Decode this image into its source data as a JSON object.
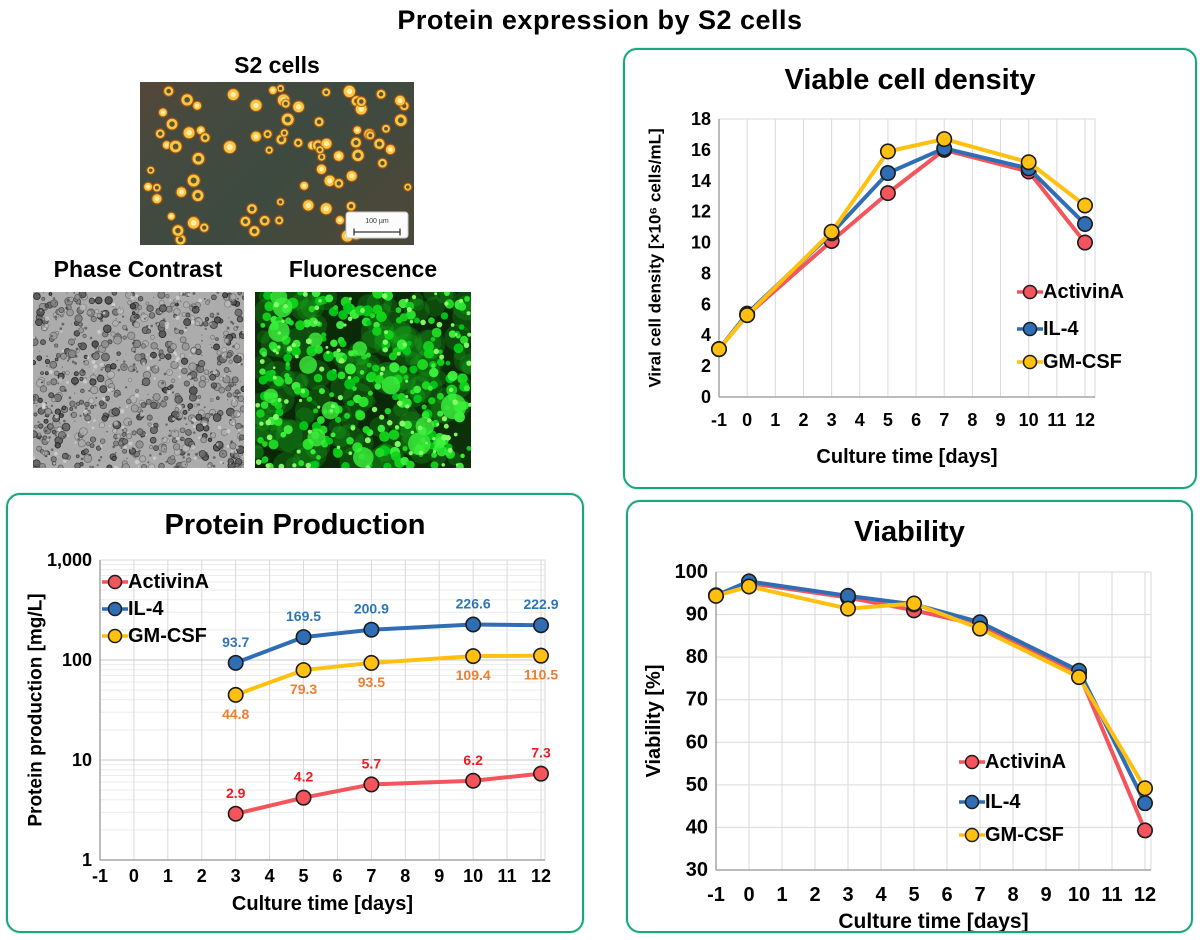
{
  "page_title": "Protein expression by S2 cells",
  "microscopy": {
    "s2_label": "S2 cells",
    "phase_label": "Phase Contrast",
    "fluor_label": "Fluorescence",
    "scale_bar_text": "100 µm"
  },
  "colors": {
    "panel_border": "#18A67D",
    "activina": "#F4545C",
    "il4": "#2F6DB4",
    "gmcsf": "#FFC010",
    "activina_label": "#ED1C24",
    "il4_label": "#2E75B5",
    "gmcsf_label": "#ED7D31",
    "marker_outline": "#1C1C1C",
    "grid": "#D9D9D9",
    "axis": "#A6A6A6"
  },
  "chart_data": [
    {
      "id": "viable-cell-density",
      "type": "line",
      "title": "Viable cell density",
      "xlabel": "Culture time [days]",
      "ylabel": "Viral cell density [×10⁶ cells/mL]",
      "x": [
        -1,
        0,
        3,
        5,
        7,
        10,
        12
      ],
      "xticks": [
        -1,
        0,
        1,
        2,
        3,
        4,
        5,
        6,
        7,
        8,
        9,
        10,
        11,
        12
      ],
      "ylim": [
        0,
        18
      ],
      "yticks": [
        0,
        2,
        4,
        6,
        8,
        10,
        12,
        14,
        16,
        18
      ],
      "yscale": "linear",
      "grid": {
        "vertical": true,
        "horizontal": false,
        "log_minor": false
      },
      "legend_position": "middle-right",
      "series": [
        {
          "name": "ActivinA",
          "color": "#F4545C",
          "values": [
            3.1,
            5.3,
            10.1,
            13.2,
            16.0,
            14.6,
            10.0
          ]
        },
        {
          "name": "IL-4",
          "color": "#2F6DB4",
          "values": [
            3.1,
            5.4,
            10.6,
            14.5,
            16.1,
            14.8,
            11.2
          ]
        },
        {
          "name": "GM-CSF",
          "color": "#FFC010",
          "values": [
            3.1,
            5.3,
            10.7,
            15.9,
            16.7,
            15.2,
            12.4
          ]
        }
      ]
    },
    {
      "id": "protein-production",
      "type": "line",
      "title": "Protein Production",
      "xlabel": "Culture time [days]",
      "ylabel": "Protein production  [mg/L]",
      "x": [
        3,
        5,
        7,
        10,
        12
      ],
      "xticks": [
        -1,
        0,
        1,
        2,
        3,
        4,
        5,
        6,
        7,
        8,
        9,
        10,
        11,
        12
      ],
      "ylim": [
        1,
        1000
      ],
      "yticks": [
        1,
        10,
        100,
        1000
      ],
      "ytick_labels": [
        "1",
        "10",
        "100",
        "1,000"
      ],
      "yscale": "log",
      "grid": {
        "vertical": true,
        "horizontal": true,
        "log_minor": true
      },
      "legend_position": "top-left",
      "series": [
        {
          "name": "ActivinA",
          "color": "#F4545C",
          "values": [
            2.9,
            4.2,
            5.7,
            6.2,
            7.3
          ],
          "point_labels": true,
          "label_position": "above",
          "label_color": "#ED1C24"
        },
        {
          "name": "IL-4",
          "color": "#2F6DB4",
          "values": [
            93.7,
            169.5,
            200.9,
            226.6,
            222.9
          ],
          "point_labels": true,
          "label_position": "above",
          "label_color": "#2E75B5"
        },
        {
          "name": "GM-CSF",
          "color": "#FFC010",
          "values": [
            44.8,
            79.3,
            93.5,
            109.4,
            110.5
          ],
          "point_labels": true,
          "label_position": "below",
          "label_color": "#ED7D31"
        }
      ]
    },
    {
      "id": "viability",
      "type": "line",
      "title": "Viability",
      "xlabel": "Culture time [days]",
      "ylabel": "Viability [%]",
      "x": [
        -1,
        0,
        3,
        5,
        7,
        10,
        12
      ],
      "xticks": [
        -1,
        0,
        1,
        2,
        3,
        4,
        5,
        6,
        7,
        8,
        9,
        10,
        11,
        12
      ],
      "ylim": [
        30,
        100
      ],
      "yticks": [
        30,
        40,
        50,
        60,
        70,
        80,
        90,
        100
      ],
      "yscale": "linear",
      "grid": {
        "vertical": true,
        "horizontal": true,
        "log_minor": false
      },
      "legend_position": "lower-right",
      "series": [
        {
          "name": "ActivinA",
          "color": "#F4545C",
          "values": [
            94.5,
            97.4,
            94.0,
            91.0,
            87.5,
            76.2,
            39.3
          ]
        },
        {
          "name": "IL-4",
          "color": "#2F6DB4",
          "values": [
            94.5,
            97.8,
            94.4,
            92.4,
            88.2,
            76.8,
            45.7
          ]
        },
        {
          "name": "GM-CSF",
          "color": "#FFC010",
          "values": [
            94.4,
            96.6,
            91.4,
            92.6,
            86.7,
            75.3,
            49.2
          ]
        }
      ]
    }
  ]
}
